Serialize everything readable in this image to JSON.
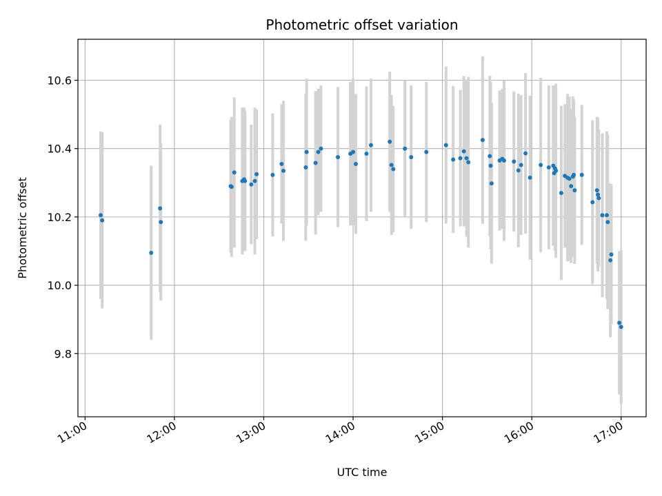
{
  "chart_data": {
    "type": "scatter",
    "title": "Photometric offset variation",
    "xlabel": "UTC time",
    "ylabel": "Photometric offset",
    "x_unit": "hours UTC",
    "xlim": [
      10.92,
      17.28
    ],
    "ylim": [
      9.615,
      10.72
    ],
    "x_ticks": [
      11,
      12,
      13,
      14,
      15,
      16,
      17
    ],
    "x_tick_labels": [
      "11:00",
      "12:00",
      "13:00",
      "14:00",
      "15:00",
      "16:00",
      "17:00"
    ],
    "y_ticks": [
      9.8,
      10.0,
      10.2,
      10.4,
      10.6
    ],
    "y_tick_labels": [
      "9.8",
      "10.0",
      "10.2",
      "10.4",
      "10.6"
    ],
    "grid": true,
    "colors": {
      "point": "#1f77b4",
      "errorbar": "#d3d3d3",
      "grid": "#b0b0b0"
    },
    "series": [
      {
        "x": [
          11.175,
          11.192,
          11.74,
          11.84,
          11.848,
          12.63,
          12.64,
          12.67,
          12.76,
          12.78,
          12.79,
          12.86,
          12.9,
          12.92,
          13.1,
          13.2,
          13.22,
          13.47,
          13.48,
          13.58,
          13.61,
          13.64,
          13.83,
          13.97,
          14.0,
          14.03,
          14.15,
          14.2,
          14.41,
          14.43,
          14.45,
          14.58,
          14.65,
          14.82,
          15.04,
          15.12,
          15.2,
          15.24,
          15.27,
          15.29,
          15.45,
          15.53,
          15.54,
          15.55,
          15.64,
          15.67,
          15.69,
          15.8,
          15.85,
          15.88,
          15.93,
          15.98,
          16.1,
          16.19,
          16.24,
          16.25,
          16.26,
          16.27,
          16.33,
          16.37,
          16.4,
          16.42,
          16.44,
          16.46,
          16.47,
          16.48,
          16.56,
          16.68,
          16.73,
          16.74,
          16.75,
          16.79,
          16.84,
          16.85,
          16.88,
          16.89,
          16.98,
          17.0
        ],
        "y": [
          10.205,
          10.19,
          10.095,
          10.225,
          10.185,
          10.29,
          10.288,
          10.33,
          10.305,
          10.31,
          10.305,
          10.295,
          10.305,
          10.325,
          10.323,
          10.355,
          10.335,
          10.345,
          10.39,
          10.358,
          10.39,
          10.4,
          10.375,
          10.385,
          10.39,
          10.355,
          10.385,
          10.41,
          10.42,
          10.352,
          10.34,
          10.4,
          10.375,
          10.39,
          10.41,
          10.368,
          10.372,
          10.392,
          10.372,
          10.36,
          10.425,
          10.378,
          10.35,
          10.298,
          10.365,
          10.37,
          10.365,
          10.362,
          10.336,
          10.352,
          10.386,
          10.315,
          10.352,
          10.345,
          10.35,
          10.328,
          10.342,
          10.335,
          10.27,
          10.32,
          10.315,
          10.312,
          10.29,
          10.318,
          10.323,
          10.278,
          10.323,
          10.243,
          10.278,
          10.265,
          10.255,
          10.205,
          10.205,
          10.185,
          10.073,
          10.09,
          9.89,
          9.878
        ],
        "yerr": [
          0.245,
          0.258,
          0.255,
          0.245,
          0.23,
          0.195,
          0.205,
          0.22,
          0.215,
          0.21,
          0.205,
          0.175,
          0.215,
          0.19,
          0.18,
          0.175,
          0.205,
          0.215,
          0.215,
          0.21,
          0.185,
          0.185,
          0.205,
          0.21,
          0.215,
          0.205,
          0.197,
          0.195,
          0.205,
          0.205,
          0.185,
          0.2,
          0.21,
          0.205,
          0.23,
          0.215,
          0.2,
          0.22,
          0.23,
          0.25,
          0.245,
          0.235,
          0.245,
          0.235,
          0.205,
          0.205,
          0.235,
          0.205,
          0.225,
          0.205,
          0.235,
          0.24,
          0.255,
          0.24,
          0.235,
          0.205,
          0.24,
          0.255,
          0.255,
          0.21,
          0.245,
          0.24,
          0.225,
          0.235,
          0.22,
          0.215,
          0.205,
          0.24,
          0.215,
          0.225,
          0.2,
          0.24,
          0.245,
          0.255,
          0.225,
          0.205,
          0.21,
          0.225
        ]
      }
    ]
  }
}
